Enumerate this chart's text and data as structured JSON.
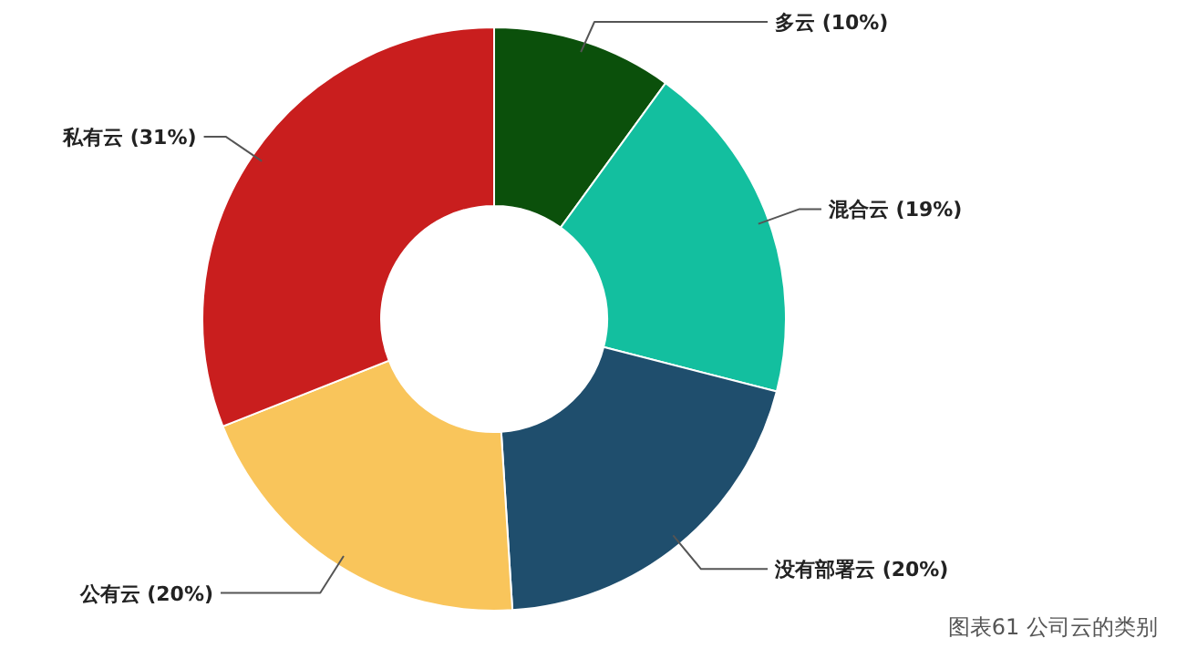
{
  "chart_data": {
    "type": "donut",
    "categories": [
      "多云",
      "混合云",
      "没有部署云",
      "公有云",
      "私有云"
    ],
    "values": [
      10,
      19,
      20,
      20,
      31
    ],
    "colors": [
      "#0b500b",
      "#13bf9f",
      "#1f4e6d",
      "#f9c55b",
      "#c91e1e"
    ],
    "value_labels": [
      "(10%)",
      "(19%)",
      "(20%)",
      "(20%)",
      "(31%)"
    ],
    "annotations": [
      "图表61 公司云的类别"
    ]
  }
}
